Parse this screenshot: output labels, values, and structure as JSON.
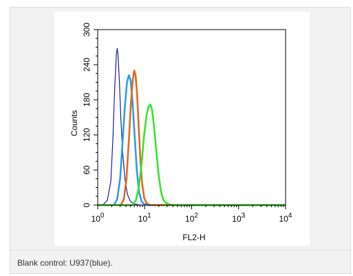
{
  "caption": "Blank control: U937(blue).",
  "chart_data": {
    "type": "line",
    "subtype": "flow-cytometry-histogram",
    "xlabel": "FL2-H",
    "ylabel": "Counts",
    "x_scale": "log",
    "xlim": [
      1,
      10000
    ],
    "ylim": [
      0,
      300
    ],
    "x_ticks": [
      {
        "value": 1,
        "base": "10",
        "exp": "0"
      },
      {
        "value": 10,
        "base": "10",
        "exp": "1"
      },
      {
        "value": 100,
        "base": "10",
        "exp": "2"
      },
      {
        "value": 1000,
        "base": "10",
        "exp": "3"
      },
      {
        "value": 10000,
        "base": "10",
        "exp": "4"
      }
    ],
    "y_ticks": [
      {
        "value": 0,
        "label": "0"
      },
      {
        "value": 60,
        "label": "60"
      },
      {
        "value": 120,
        "label": "120"
      },
      {
        "value": 180,
        "label": "180"
      },
      {
        "value": 240,
        "label": "240"
      },
      {
        "value": 300,
        "label": "300"
      }
    ],
    "grid": false,
    "series": [
      {
        "color": "#1a1aa0",
        "stroke": "thin",
        "points": [
          [
            1.0,
            0
          ],
          [
            1.3,
            1
          ],
          [
            1.6,
            8
          ],
          [
            1.9,
            40
          ],
          [
            2.1,
            110
          ],
          [
            2.3,
            200
          ],
          [
            2.5,
            258
          ],
          [
            2.6,
            268
          ],
          [
            2.7,
            258
          ],
          [
            2.9,
            210
          ],
          [
            3.1,
            150
          ],
          [
            3.4,
            90
          ],
          [
            3.8,
            45
          ],
          [
            4.3,
            18
          ],
          [
            5.0,
            6
          ],
          [
            6.0,
            2
          ],
          [
            8.0,
            0
          ],
          [
            10000,
            0
          ]
        ]
      },
      {
        "color": "#2a9df0",
        "stroke": "thick",
        "points": [
          [
            1.0,
            0
          ],
          [
            2.2,
            0
          ],
          [
            2.6,
            10
          ],
          [
            3.0,
            45
          ],
          [
            3.4,
            110
          ],
          [
            3.8,
            170
          ],
          [
            4.2,
            210
          ],
          [
            4.6,
            222
          ],
          [
            5.0,
            214
          ],
          [
            5.5,
            178
          ],
          [
            6.1,
            120
          ],
          [
            6.8,
            60
          ],
          [
            7.6,
            22
          ],
          [
            8.6,
            6
          ],
          [
            10,
            1
          ],
          [
            12,
            0
          ],
          [
            10000,
            0
          ]
        ]
      },
      {
        "color": "#e2691e",
        "stroke": "thick",
        "points": [
          [
            1.0,
            0
          ],
          [
            3.1,
            0
          ],
          [
            3.6,
            10
          ],
          [
            4.1,
            45
          ],
          [
            4.6,
            110
          ],
          [
            5.1,
            175
          ],
          [
            5.6,
            215
          ],
          [
            6.0,
            230
          ],
          [
            6.4,
            222
          ],
          [
            6.9,
            190
          ],
          [
            7.4,
            140
          ],
          [
            8.0,
            85
          ],
          [
            8.8,
            38
          ],
          [
            9.8,
            12
          ],
          [
            11,
            3
          ],
          [
            13,
            0
          ],
          [
            10000,
            0
          ]
        ]
      },
      {
        "color": "#33e62a",
        "stroke": "thick",
        "points": [
          [
            1.0,
            0
          ],
          [
            5.5,
            0
          ],
          [
            6.5,
            8
          ],
          [
            7.5,
            30
          ],
          [
            8.6,
            70
          ],
          [
            9.6,
            115
          ],
          [
            10.8,
            150
          ],
          [
            12.0,
            168
          ],
          [
            13.2,
            172
          ],
          [
            14.4,
            162
          ],
          [
            15.8,
            135
          ],
          [
            17.6,
            95
          ],
          [
            19.6,
            55
          ],
          [
            22.0,
            25
          ],
          [
            25.0,
            9
          ],
          [
            29.0,
            3
          ],
          [
            35.0,
            1
          ],
          [
            45.0,
            0
          ],
          [
            10000,
            0
          ]
        ]
      }
    ]
  }
}
